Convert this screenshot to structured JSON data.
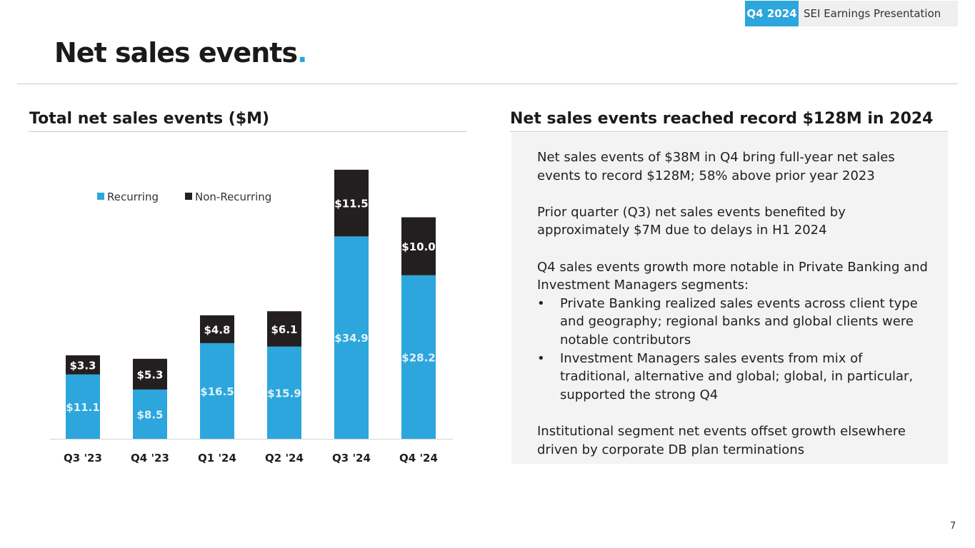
{
  "header": {
    "tag": "Q4 2024",
    "text": "SEI Earnings Presentation"
  },
  "title": {
    "main": "Net sales events",
    "dot": "."
  },
  "left_section": {
    "title": "Total net sales events ($M)"
  },
  "right_section": {
    "title": "Net sales events reached record $128M in 2024",
    "paragraphs": [
      "Net sales events of $38M in Q4 bring full-year net sales events to record $128M; 58% above prior year 2023",
      "Prior quarter (Q3) net sales events benefited by approximately $7M due to delays in H1 2024",
      "Q4 sales events growth more notable in Private Banking and Investment Managers segments:",
      "Institutional segment net events offset growth elsewhere driven by corporate DB plan terminations"
    ],
    "bullet_char": "•",
    "bullets": [
      "Private Banking realized sales events across client type and geography; regional banks and global clients were notable contributors",
      "Investment Managers sales events from mix of traditional, alternative and global; global, in particular, supported the strong Q4"
    ]
  },
  "page_number": "7",
  "colors": {
    "recurring": "#2ca6dc",
    "non_recurring": "#231f20",
    "accent": "#2ca6dc"
  },
  "chart_data": {
    "type": "bar",
    "stacked": true,
    "title": "Total net sales events ($M)",
    "categories": [
      "Q3 '23",
      "Q4 '23",
      "Q1 '24",
      "Q2 '24",
      "Q3 '24",
      "Q4 '24"
    ],
    "series": [
      {
        "name": "Recurring",
        "values": [
          11.1,
          8.5,
          16.5,
          15.9,
          34.9,
          28.2
        ],
        "labels": [
          "$11.1",
          "$8.5",
          "$16.5",
          "$15.9",
          "$34.9",
          "$28.2"
        ]
      },
      {
        "name": "Non-Recurring",
        "values": [
          3.3,
          5.3,
          4.8,
          6.1,
          11.5,
          10.0
        ],
        "labels": [
          "$3.3",
          "$5.3",
          "$4.8",
          "$6.1",
          "$11.5",
          "$10.0"
        ]
      }
    ],
    "ylim": [
      0,
      47
    ],
    "legend": "top-left",
    "grid": false,
    "xlabel": "",
    "ylabel": ""
  }
}
